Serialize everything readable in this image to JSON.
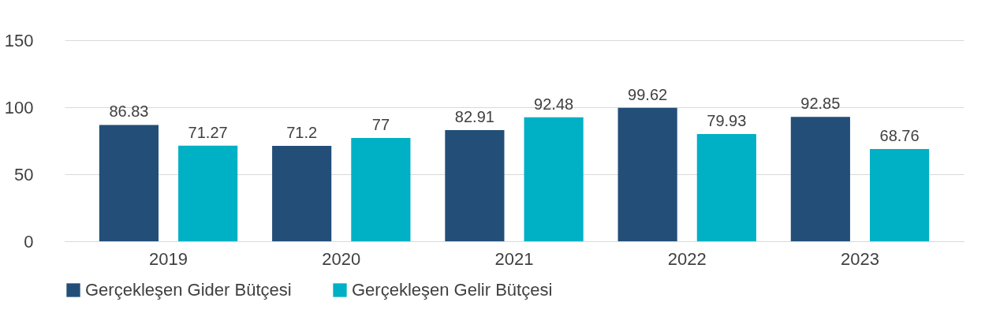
{
  "chart_data": {
    "type": "bar",
    "categories": [
      "2019",
      "2020",
      "2021",
      "2022",
      "2023"
    ],
    "series": [
      {
        "name": "Gerçekleşen Gider Bütçesi",
        "color": "#234e78",
        "values": [
          86.83,
          71.2,
          82.91,
          99.62,
          92.85
        ]
      },
      {
        "name": "Gerçekleşen Gelir Bütçesi",
        "color": "#00b0c4",
        "values": [
          71.27,
          77,
          92.48,
          79.93,
          68.76
        ]
      }
    ],
    "ylim": [
      0,
      150
    ],
    "yticks": [
      0,
      50,
      100,
      150
    ],
    "grid": "y",
    "legend": "bottom",
    "data_labels": true
  }
}
